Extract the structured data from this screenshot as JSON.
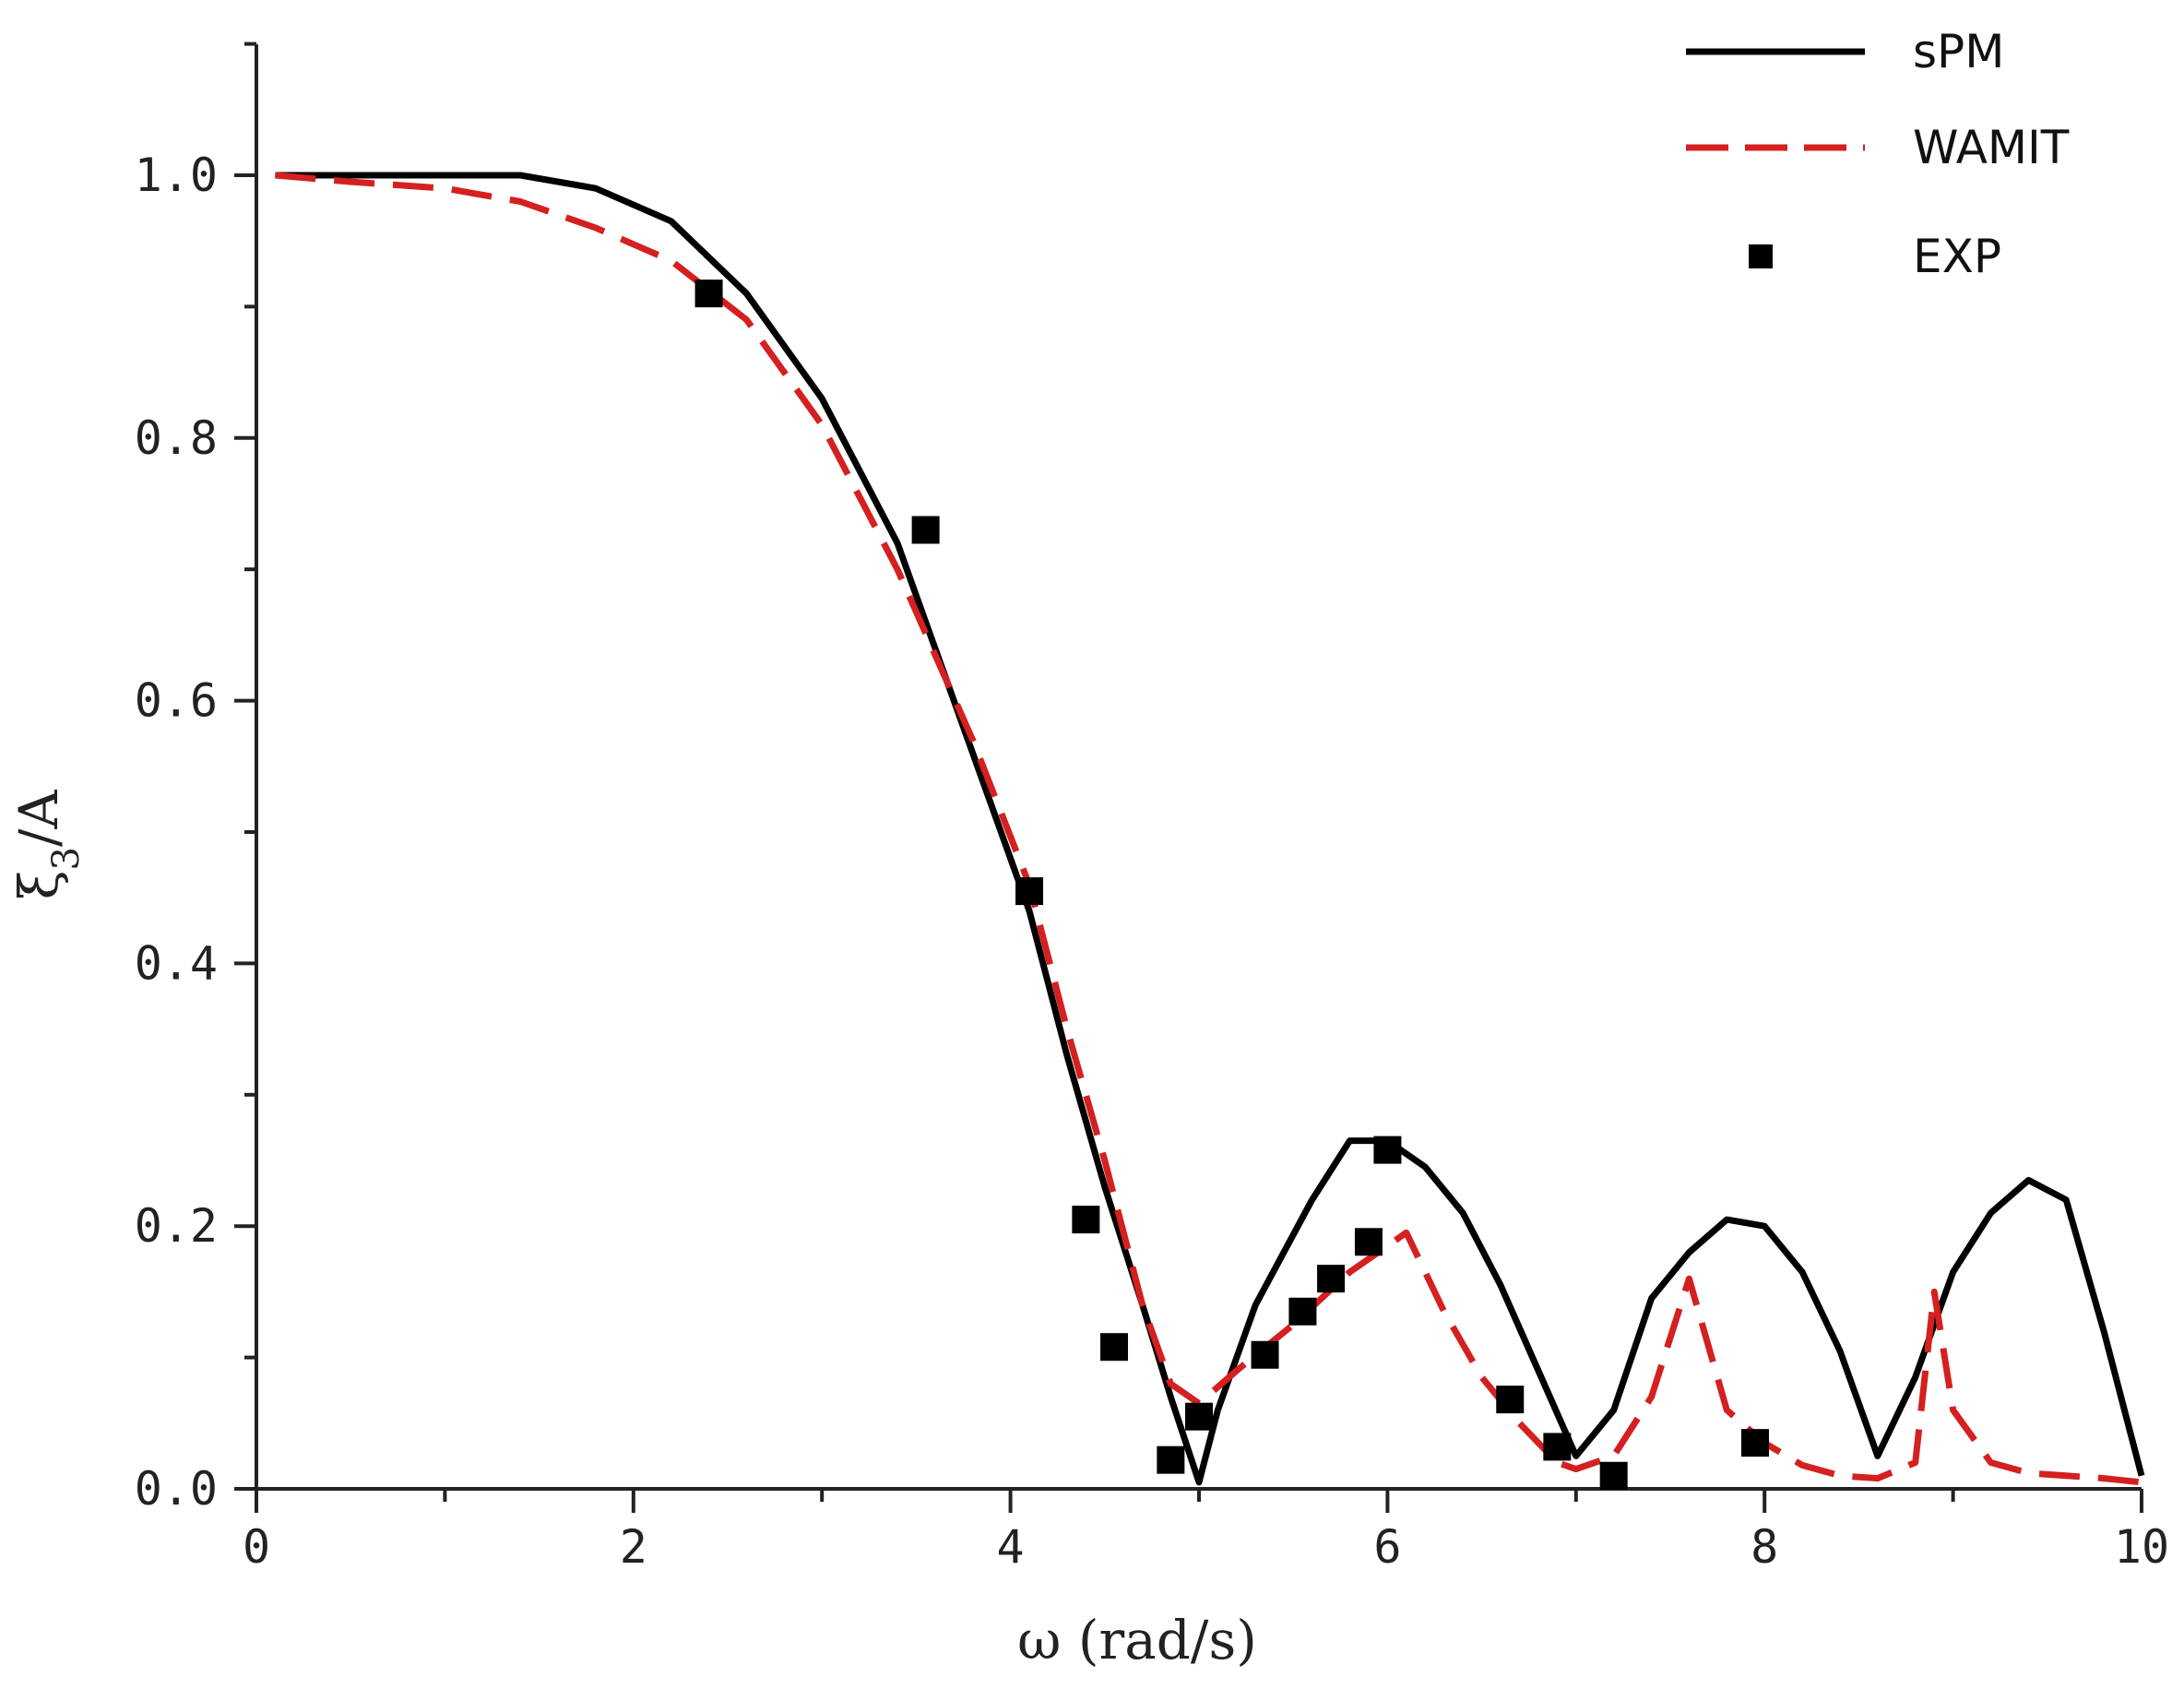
{
  "chart_data": {
    "type": "line",
    "xlabel": "ω (rad/s)",
    "ylabel": "ξ3/A",
    "ylabel_base": "ξ",
    "ylabel_sub": "3",
    "ylabel_rest": "/A",
    "xlim": [
      0,
      10
    ],
    "ylim": [
      0,
      1.1
    ],
    "x_ticks": [
      0,
      2,
      4,
      6,
      8,
      10
    ],
    "x_tick_labels": [
      "0",
      "2",
      "4",
      "6",
      "8",
      "10"
    ],
    "y_ticks": [
      0,
      0.2,
      0.4,
      0.6,
      0.8,
      1.0
    ],
    "y_tick_labels": [
      "0.0",
      "0.2",
      "0.4",
      "0.6",
      "0.8",
      "1.0"
    ],
    "grid": false,
    "legend_position": "top-right",
    "series": [
      {
        "name": "sPM",
        "style": "solid",
        "color": "#000000",
        "x": [
          0.1,
          0.5,
          1.0,
          1.4,
          1.8,
          2.2,
          2.6,
          3.0,
          3.4,
          3.8,
          4.1,
          4.3,
          4.5,
          4.7,
          4.85,
          5.0,
          5.1,
          5.3,
          5.6,
          5.8,
          6.0,
          6.2,
          6.4,
          6.6,
          6.8,
          7.0,
          7.2,
          7.4,
          7.6,
          7.8,
          8.0,
          8.2,
          8.4,
          8.6,
          8.8,
          9.0,
          9.2,
          9.4,
          9.6,
          9.8,
          10.0
        ],
        "y": [
          1.0,
          1.0,
          1.0,
          1.0,
          0.99,
          0.965,
          0.91,
          0.83,
          0.72,
          0.56,
          0.44,
          0.33,
          0.23,
          0.14,
          0.07,
          0.005,
          0.06,
          0.14,
          0.22,
          0.265,
          0.265,
          0.245,
          0.21,
          0.155,
          0.09,
          0.025,
          0.06,
          0.145,
          0.18,
          0.205,
          0.2,
          0.165,
          0.105,
          0.025,
          0.085,
          0.165,
          0.21,
          0.235,
          0.22,
          0.12,
          0.01
        ]
      },
      {
        "name": "WAMIT",
        "style": "dashed",
        "color": "#d42020",
        "x": [
          0.1,
          0.5,
          1.0,
          1.4,
          1.8,
          2.2,
          2.6,
          3.0,
          3.4,
          3.8,
          4.1,
          4.3,
          4.5,
          4.7,
          4.85,
          5.0,
          5.2,
          5.5,
          5.8,
          6.0,
          6.1,
          6.3,
          6.5,
          6.7,
          6.9,
          7.0,
          7.2,
          7.4,
          7.6,
          7.8,
          8.0,
          8.2,
          8.4,
          8.6,
          8.8,
          8.9,
          9.0,
          9.2,
          9.4,
          9.6,
          9.8,
          10.0
        ],
        "y": [
          1.0,
          0.995,
          0.99,
          0.98,
          0.96,
          0.935,
          0.89,
          0.81,
          0.7,
          0.57,
          0.46,
          0.35,
          0.25,
          0.14,
          0.08,
          0.065,
          0.09,
          0.125,
          0.165,
          0.185,
          0.195,
          0.135,
          0.085,
          0.05,
          0.02,
          0.015,
          0.025,
          0.07,
          0.16,
          0.06,
          0.035,
          0.018,
          0.01,
          0.008,
          0.02,
          0.15,
          0.06,
          0.02,
          0.012,
          0.01,
          0.008,
          0.005
        ]
      },
      {
        "name": "EXP",
        "style": "markers",
        "color": "#000000",
        "x": [
          2.4,
          3.55,
          4.1,
          4.4,
          4.55,
          4.85,
          5.0,
          5.35,
          5.55,
          5.7,
          5.9,
          6.0,
          6.65,
          6.9,
          7.2,
          7.95
        ],
        "y": [
          0.91,
          0.73,
          0.455,
          0.205,
          0.108,
          0.022,
          0.055,
          0.102,
          0.135,
          0.16,
          0.188,
          0.258,
          0.068,
          0.032,
          0.01,
          0.035
        ]
      }
    ]
  }
}
